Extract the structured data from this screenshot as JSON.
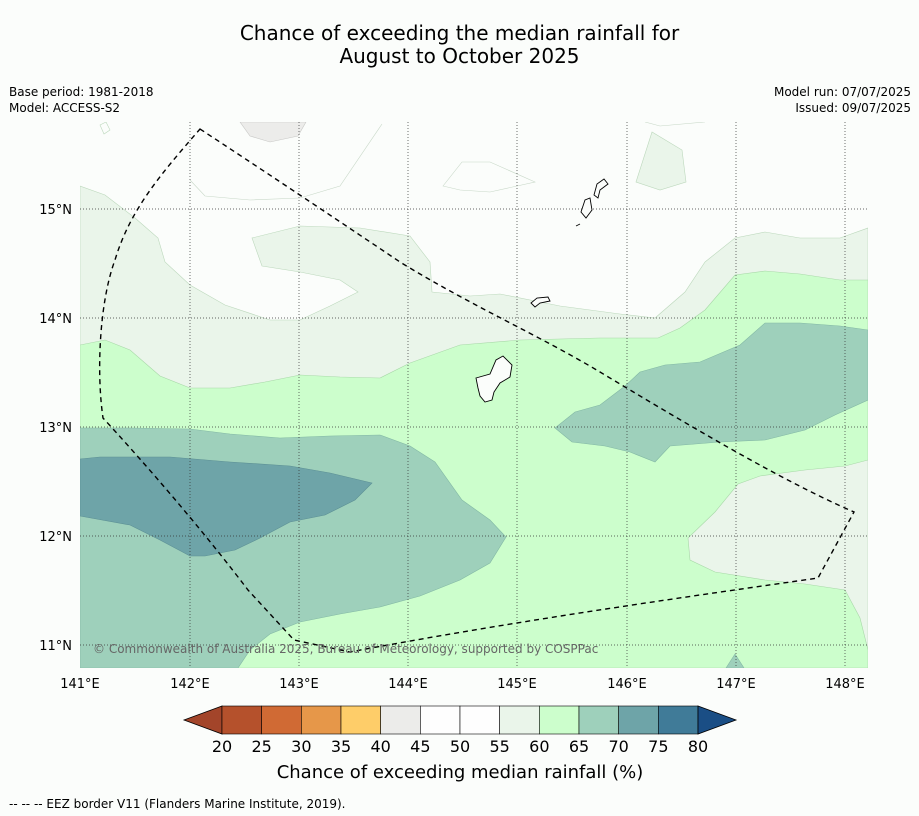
{
  "title_line1": "Chance of exceeding the median rainfall for",
  "title_line2": "August to October 2025",
  "base_period": "Base period: 1981-2018",
  "model": "Model: ACCESS-S2",
  "model_run": "Model run: 07/07/2025",
  "issued": "Issued: 09/07/2025",
  "lon_ticks": [
    "141°E",
    "142°E",
    "143°E",
    "144°E",
    "145°E",
    "146°E",
    "147°E",
    "148°E"
  ],
  "lat_ticks": [
    "15°N",
    "14°N",
    "13°N",
    "12°N",
    "11°N"
  ],
  "copyright": "© Commonwealth of Australia 2025, Bureau of Meteorology, supported by COSPPac",
  "colorbar": {
    "levels": [
      "20",
      "25",
      "30",
      "35",
      "40",
      "45",
      "50",
      "55",
      "60",
      "65",
      "70",
      "75",
      "80"
    ],
    "colors": [
      "#b5512c",
      "#d06a34",
      "#e69749",
      "#fecd69",
      "#ececea",
      "#fefefe",
      "#fefefe",
      "#eaf5ea",
      "#ccfecc",
      "#9ed0bb",
      "#6ea4a8",
      "#407b98"
    ],
    "under_color": "#a3452a",
    "over_color": "#1a4e85",
    "label": "Chance of exceeding median rainfall (%)"
  },
  "footnote": "--  --  -- EEZ border V11 (Flanders Marine Institute, 2019)."
}
